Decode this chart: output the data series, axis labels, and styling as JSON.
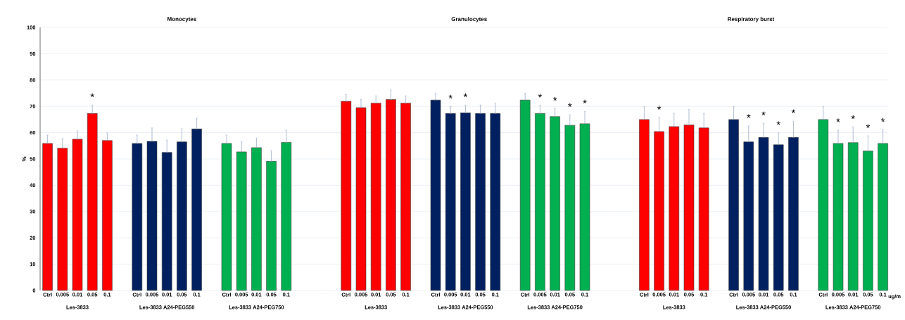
{
  "chart_data": [
    {
      "type": "bar",
      "title": "Monocytes",
      "ylabel": "%",
      "ylim": [
        0,
        100
      ],
      "yticks": [
        0,
        10,
        20,
        30,
        40,
        50,
        60,
        70,
        80,
        90,
        100
      ],
      "grid": "y",
      "categories": [
        "Ctrl",
        "0.005",
        "0.01",
        "0.05",
        "0.1",
        "Ctrl",
        "0.005",
        "0.01",
        "0.05",
        "0.1",
        "Ctrl",
        "0.005",
        "0.01",
        "0.05",
        "0.1"
      ],
      "series": [
        {
          "name": "Les-3833",
          "color": "#ff0000",
          "values": [
            55.9,
            54.1,
            57.5,
            67.3,
            57.0,
            null,
            null,
            null,
            null,
            null,
            null,
            null,
            null,
            null,
            null
          ],
          "errors": [
            [
              55.9,
              59.1
            ],
            [
              54.1,
              57.8
            ],
            [
              57.5,
              60.7
            ],
            [
              67.3,
              70.5
            ],
            [
              57.0,
              59.9
            ],
            null,
            null,
            null,
            null,
            null,
            null,
            null,
            null,
            null,
            null
          ],
          "value_labels": [
            null,
            null,
            null,
            "*",
            null,
            null,
            null,
            null,
            null,
            null,
            null,
            null,
            null,
            null,
            null
          ]
        },
        {
          "name": "Les-3833 A24-PEG550",
          "color": "#002060",
          "values": [
            null,
            null,
            null,
            null,
            null,
            55.9,
            56.7,
            52.5,
            56.5,
            61.4,
            null,
            null,
            null,
            null,
            null
          ],
          "errors": [
            null,
            null,
            null,
            null,
            null,
            [
              55.9,
              59.1
            ],
            [
              56.7,
              61.8
            ],
            [
              52.5,
              57.2
            ],
            [
              56.5,
              61.5
            ],
            [
              61.4,
              65.5
            ],
            null,
            null,
            null,
            null,
            null
          ]
        },
        {
          "name": "Les-3833 A24-PEG750",
          "color": "#00b050",
          "values": [
            null,
            null,
            null,
            null,
            null,
            null,
            null,
            null,
            null,
            null,
            55.9,
            52.7,
            54.3,
            49.1,
            56.3
          ],
          "errors": [
            null,
            null,
            null,
            null,
            null,
            null,
            null,
            null,
            null,
            null,
            [
              55.9,
              59.1
            ],
            [
              52.7,
              56.5
            ],
            [
              54.3,
              58.0
            ],
            [
              49.1,
              53.2
            ],
            [
              56.3,
              61.0
            ]
          ]
        }
      ]
    },
    {
      "type": "bar",
      "title": "Granulocytes",
      "ylim": [
        0,
        100
      ],
      "yticks": [
        0,
        10,
        20,
        30,
        40,
        50,
        60,
        70,
        80,
        90,
        100
      ],
      "grid": "y",
      "tick_labels": "x",
      "categories": [
        "Ctrl",
        "0.005",
        "0.01",
        "0.05",
        "0.1",
        "Ctrl",
        "0.005",
        "0.01",
        "0.05",
        "0.1",
        "Ctrl",
        "0.005",
        "0.01",
        "0.05",
        "0.1"
      ],
      "series": [
        {
          "name": "Les-3833",
          "color": "#ff0000",
          "values": [
            71.9,
            69.5,
            71.2,
            72.6,
            71.2,
            null,
            null,
            null,
            null,
            null,
            null,
            null,
            null,
            null,
            null
          ],
          "errors": [
            [
              71.9,
              74.5
            ],
            [
              69.5,
              72.6
            ],
            [
              71.2,
              74.0
            ],
            [
              72.6,
              76.2
            ],
            [
              71.2,
              74.0
            ],
            null,
            null,
            null,
            null,
            null,
            null,
            null,
            null,
            null,
            null
          ]
        },
        {
          "name": "Les-3833 A24-PEG550",
          "color": "#002060",
          "values": [
            null,
            null,
            null,
            null,
            null,
            72.4,
            67.3,
            67.5,
            67.3,
            67.3,
            null,
            null,
            null,
            null,
            null
          ],
          "errors": [
            null,
            null,
            null,
            null,
            null,
            [
              72.4,
              75.0
            ],
            [
              67.3,
              70.0
            ],
            [
              67.5,
              70.5
            ],
            [
              67.3,
              70.5
            ],
            [
              67.3,
              71.2
            ],
            null,
            null,
            null,
            null,
            null
          ],
          "value_labels": [
            null,
            null,
            null,
            null,
            null,
            null,
            "*",
            "*",
            null,
            null,
            null,
            null,
            null,
            null,
            null
          ]
        },
        {
          "name": "Les-3833 A24-PEG750",
          "color": "#00b050",
          "values": [
            null,
            null,
            null,
            null,
            null,
            null,
            null,
            null,
            null,
            null,
            72.4,
            67.3,
            66.1,
            62.8,
            63.4
          ],
          "errors": [
            null,
            null,
            null,
            null,
            null,
            null,
            null,
            null,
            null,
            null,
            [
              72.4,
              75.0
            ],
            [
              67.3,
              70.4
            ],
            [
              66.1,
              69.2
            ],
            [
              62.8,
              66.8
            ],
            [
              63.4,
              68.1
            ]
          ],
          "value_labels": [
            null,
            null,
            null,
            null,
            null,
            null,
            null,
            null,
            null,
            null,
            null,
            "*",
            "*",
            "*",
            "*"
          ]
        }
      ]
    },
    {
      "type": "bar",
      "title": "Respiratory burst",
      "xlabel": "ug/m",
      "ylim": [
        0,
        100
      ],
      "yticks": [
        0,
        10,
        20,
        30,
        40,
        50,
        60,
        70,
        80,
        90,
        100
      ],
      "grid": "y",
      "tick_labels": "x",
      "categories": [
        "Ctrl",
        "0.005",
        "0.01",
        "0.05",
        "0.1",
        "Ctrl",
        "0.005",
        "0.01",
        "0.05",
        "0.1",
        "Ctrl",
        "0.005",
        "0.01",
        "0.05",
        "0.1"
      ],
      "series": [
        {
          "name": "Les-3833",
          "color": "#ff0000",
          "values": [
            65.0,
            60.4,
            62.3,
            62.9,
            61.8,
            null,
            null,
            null,
            null,
            null,
            null,
            null,
            null,
            null,
            null
          ],
          "errors": [
            [
              65.0,
              69.9
            ],
            [
              60.4,
              65.8
            ],
            [
              62.3,
              67.3
            ],
            [
              62.9,
              68.9
            ],
            [
              61.8,
              67.3
            ],
            null,
            null,
            null,
            null,
            null,
            null,
            null,
            null,
            null,
            null
          ],
          "value_labels": [
            null,
            "*",
            null,
            null,
            null,
            null,
            null,
            null,
            null,
            null,
            null,
            null,
            null,
            null,
            null
          ]
        },
        {
          "name": "Les-3833 A24-PEG550",
          "color": "#002060",
          "values": [
            null,
            null,
            null,
            null,
            null,
            65.0,
            56.5,
            58.2,
            55.4,
            58.2,
            null,
            null,
            null,
            null,
            null
          ],
          "errors": [
            null,
            null,
            null,
            null,
            null,
            [
              65.0,
              69.9
            ],
            [
              56.5,
              62.6
            ],
            [
              58.2,
              63.6
            ],
            [
              55.4,
              59.9
            ],
            [
              58.2,
              64.4
            ],
            null,
            null,
            null,
            null,
            null
          ],
          "value_labels": [
            null,
            null,
            null,
            null,
            null,
            null,
            "*",
            "*",
            "*",
            "*",
            null,
            null,
            null,
            null,
            null
          ]
        },
        {
          "name": "Les-3833 A24-PEG750",
          "color": "#00b050",
          "values": [
            null,
            null,
            null,
            null,
            null,
            null,
            null,
            null,
            null,
            null,
            65.0,
            55.9,
            56.2,
            53.0,
            55.9
          ],
          "errors": [
            null,
            null,
            null,
            null,
            null,
            null,
            null,
            null,
            null,
            null,
            [
              65.0,
              69.9
            ],
            [
              55.9,
              61.0
            ],
            [
              56.2,
              62.2
            ],
            [
              53.0,
              58.8
            ],
            [
              55.9,
              61.1
            ]
          ],
          "value_labels": [
            null,
            null,
            null,
            null,
            null,
            null,
            null,
            null,
            null,
            null,
            null,
            "*",
            "*",
            "*",
            "*"
          ]
        }
      ]
    }
  ]
}
